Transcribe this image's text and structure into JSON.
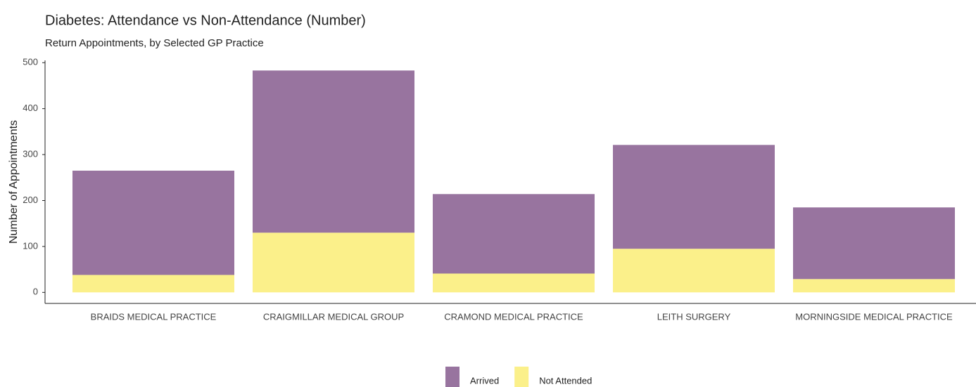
{
  "chart_data": {
    "type": "bar",
    "stacked": true,
    "title": "Diabetes: Attendance vs Non-Attendance (Number)",
    "subtitle": "Return Appointments, by Selected GP Practice",
    "y_label": "Number of Appointments",
    "categories": [
      "BRAIDS MEDICAL PRACTICE",
      "CRAIGMILLAR MEDICAL GROUP",
      "CRAMOND MEDICAL PRACTICE",
      "LEITH SURGERY",
      "MORNINGSIDE MEDICAL PRACTICE"
    ],
    "series": [
      {
        "name": "Arrived",
        "color": "#98749f",
        "values": [
          227,
          353,
          173,
          226,
          156
        ]
      },
      {
        "name": "Not Attended",
        "color": "#fbf08a",
        "values": [
          38,
          130,
          41,
          95,
          29
        ]
      }
    ],
    "ylim": [
      -24,
      505
    ],
    "yticks": [
      0,
      100,
      200,
      300,
      400,
      500
    ],
    "legend": "bottom"
  }
}
